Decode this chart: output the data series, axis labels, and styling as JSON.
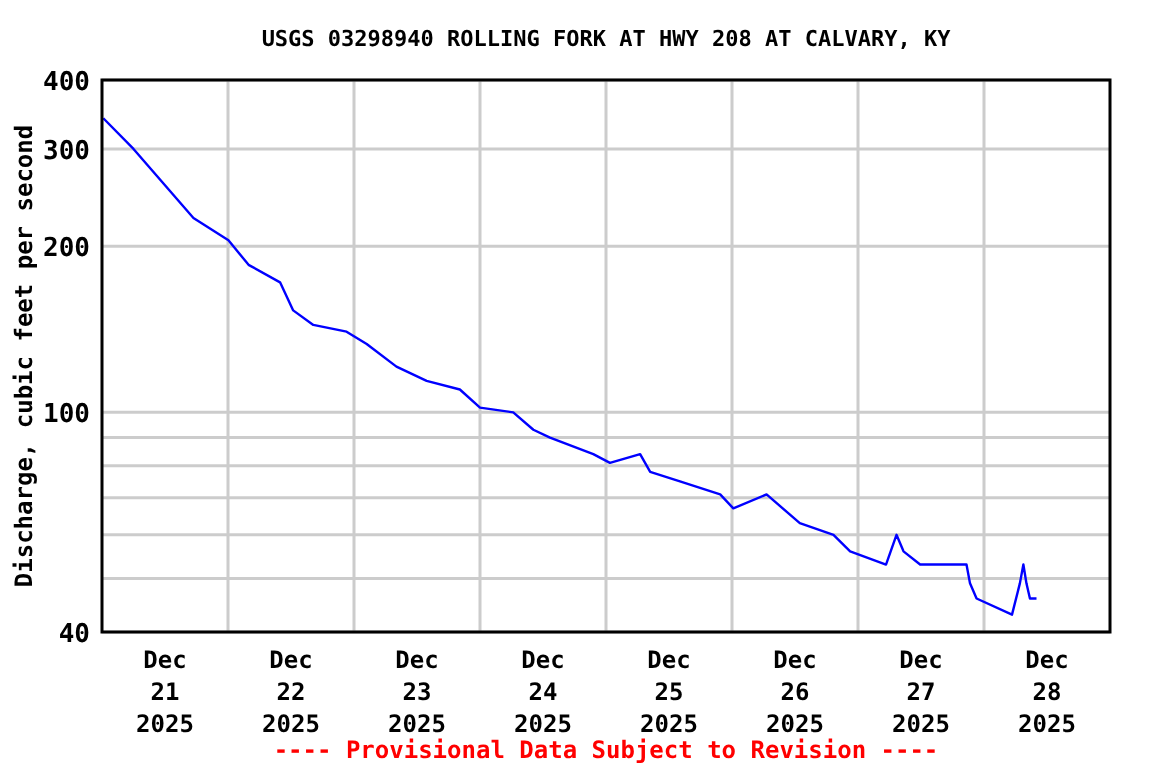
{
  "chart_data": {
    "type": "line",
    "title": "USGS 03298940 ROLLING FORK AT HWY 208 AT CALVARY, KY",
    "ylabel": "Discharge, cubic feet per second",
    "annotations": [
      "---- Provisional Data Subject to Revision ----"
    ],
    "log": "y",
    "grid": true,
    "marker": "none",
    "line_style": "solid",
    "xlim": [
      "2025-12-21T00:00",
      "2025-12-29T00:00"
    ],
    "xticks": [
      {
        "value": "2025-12-21T12:00",
        "label": "Dec\n21\n2025"
      },
      {
        "value": "2025-12-22T00:00",
        "label": null
      },
      {
        "value": "2025-12-22T12:00",
        "label": "Dec\n22\n2025"
      },
      {
        "value": "2025-12-23T00:00",
        "label": null
      },
      {
        "value": "2025-12-23T12:00",
        "label": "Dec\n23\n2025"
      },
      {
        "value": "2025-12-24T00:00",
        "label": null
      },
      {
        "value": "2025-12-24T12:00",
        "label": "Dec\n24\n2025"
      },
      {
        "value": "2025-12-25T00:00",
        "label": null
      },
      {
        "value": "2025-12-25T12:00",
        "label": "Dec\n25\n2025"
      },
      {
        "value": "2025-12-26T00:00",
        "label": null
      },
      {
        "value": "2025-12-26T12:00",
        "label": "Dec\n26\n2025"
      },
      {
        "value": "2025-12-27T00:00",
        "label": null
      },
      {
        "value": "2025-12-27T12:00",
        "label": "Dec\n27\n2025"
      },
      {
        "value": "2025-12-28T00:00",
        "label": null
      },
      {
        "value": "2025-12-28T12:00",
        "label": "Dec\n28\n2025"
      }
    ],
    "ylim": [
      40,
      400
    ],
    "yticks": [
      40,
      {
        "value": 50,
        "label": null
      },
      {
        "value": 60,
        "label": null
      },
      {
        "value": 70,
        "label": null
      },
      {
        "value": 80,
        "label": null
      },
      {
        "value": 90,
        "label": null
      },
      100,
      200,
      300,
      400
    ],
    "x": [
      "2025-12-21T00:15",
      "2025-12-21T06:00",
      "2025-12-21T11:40",
      "2025-12-21T17:25",
      "2025-12-22T00:05",
      "2025-12-22T03:55",
      "2025-12-22T09:55",
      "2025-12-22T12:25",
      "2025-12-22T16:15",
      "2025-12-22T22:35",
      "2025-12-23T02:25",
      "2025-12-23T08:05",
      "2025-12-23T13:50",
      "2025-12-23T20:10",
      "2025-12-24T00:00",
      "2025-12-24T06:20",
      "2025-12-24T10:10",
      "2025-12-24T13:20",
      "2025-12-24T21:35",
      "2025-12-25T00:45",
      "2025-12-25T06:30",
      "2025-12-25T08:25",
      "2025-12-25T14:05",
      "2025-12-25T21:45",
      "2025-12-26T00:15",
      "2025-12-26T06:35",
      "2025-12-26T12:55",
      "2025-12-26T19:20",
      "2025-12-26T22:30",
      "2025-12-27T05:20",
      "2025-12-27T07:20",
      "2025-12-27T08:40",
      "2025-12-27T11:50",
      "2025-12-27T20:40",
      "2025-12-27T21:20",
      "2025-12-27T22:35",
      "2025-12-28T05:20",
      "2025-12-28T06:50",
      "2025-12-28T07:30",
      "2025-12-28T08:05",
      "2025-12-28T08:45",
      "2025-12-28T10:00"
    ],
    "series": [
      {
        "color": "#0000ff",
        "values": [
          341,
          300,
          260,
          225,
          205,
          185,
          172,
          153,
          144,
          140,
          133,
          121,
          114,
          110,
          102,
          100,
          93,
          90,
          84,
          81,
          84,
          78,
          75,
          71,
          67,
          71,
          63,
          60,
          56,
          53,
          60,
          56,
          53,
          53,
          49,
          46,
          43,
          49,
          53,
          49,
          46,
          46
        ]
      }
    ]
  }
}
